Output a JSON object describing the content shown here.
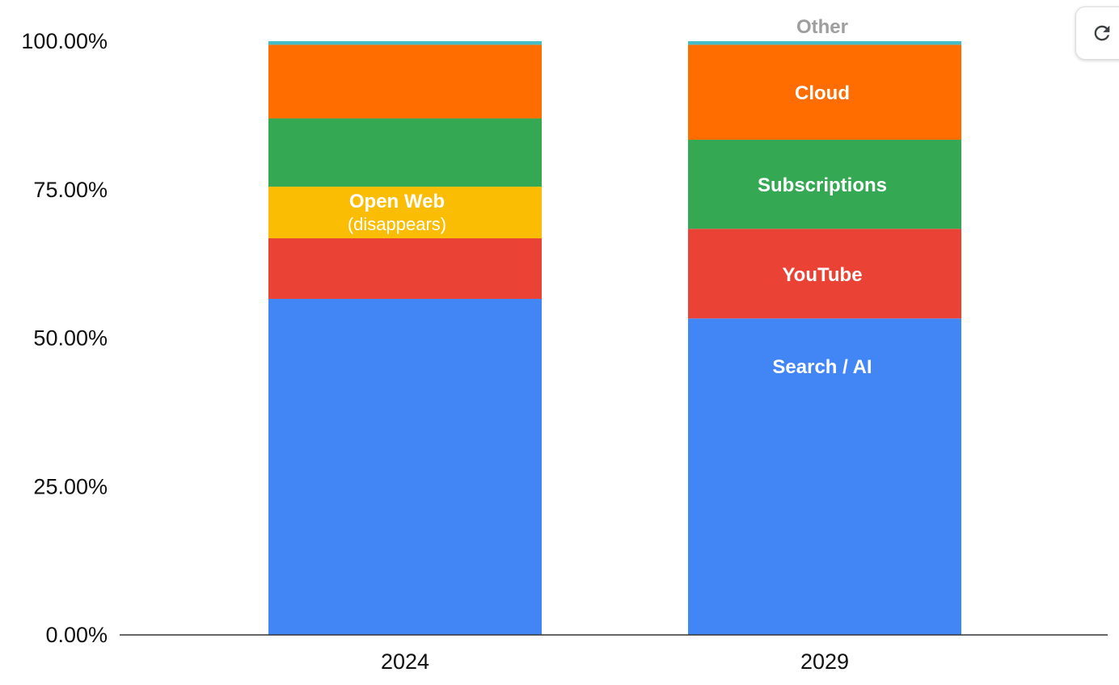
{
  "chart_data": {
    "type": "bar",
    "stacked": true,
    "categories": [
      "2024",
      "2029"
    ],
    "y_ticks": [
      "0.00%",
      "25.00%",
      "50.00%",
      "75.00%",
      "100.00%"
    ],
    "ylim": [
      0,
      100
    ],
    "grid": false,
    "legend": "none",
    "series": [
      {
        "key": "search",
        "color": "#4285f4",
        "values": [
          56.6,
          53.3
        ]
      },
      {
        "key": "youtube",
        "color": "#ea4335",
        "values": [
          10.2,
          15.1
        ]
      },
      {
        "key": "openweb",
        "color": "#fbbc04",
        "values": [
          8.7,
          0.0
        ]
      },
      {
        "key": "subs",
        "color": "#34a853",
        "values": [
          11.5,
          15.0
        ]
      },
      {
        "key": "cloud",
        "color": "#ff6d01",
        "values": [
          12.4,
          16.0
        ]
      },
      {
        "key": "other",
        "color": "#46bdc6",
        "values": [
          0.6,
          0.6
        ]
      }
    ],
    "annotations": [
      {
        "text": "Open Web",
        "sub": "(disappears)",
        "category_index": 0,
        "series_key": "openweb",
        "style": "segment"
      },
      {
        "text": "Search / AI",
        "category_index": 1,
        "series_key": "search",
        "style": "segment",
        "at": 0.85
      },
      {
        "text": "YouTube",
        "category_index": 1,
        "series_key": "youtube",
        "style": "segment"
      },
      {
        "text": "Subscriptions",
        "category_index": 1,
        "series_key": "subs",
        "style": "segment"
      },
      {
        "text": "Cloud",
        "category_index": 1,
        "series_key": "cloud",
        "style": "segment"
      },
      {
        "text": "Other",
        "category_index": 1,
        "series_key": "other",
        "style": "above"
      }
    ]
  },
  "toolbar": {
    "refresh_icon": "refresh-icon"
  }
}
